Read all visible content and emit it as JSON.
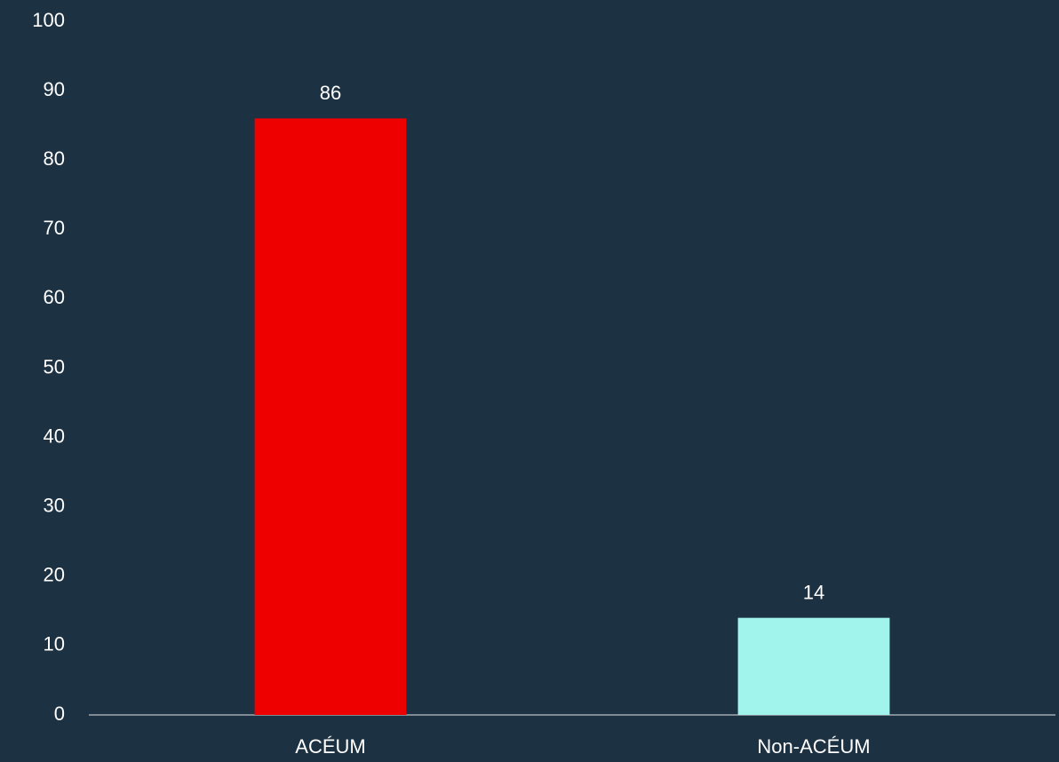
{
  "chart_data": {
    "type": "bar",
    "categories": [
      "ACÉUM",
      "Non-ACÉUM"
    ],
    "values": [
      86,
      14
    ],
    "colors": [
      "#ee0000",
      "#a0f4ec"
    ],
    "ylim": [
      0,
      100
    ],
    "yticks": [
      0,
      10,
      20,
      30,
      40,
      50,
      60,
      70,
      80,
      90,
      100
    ],
    "grid": false,
    "data_labels": true
  }
}
